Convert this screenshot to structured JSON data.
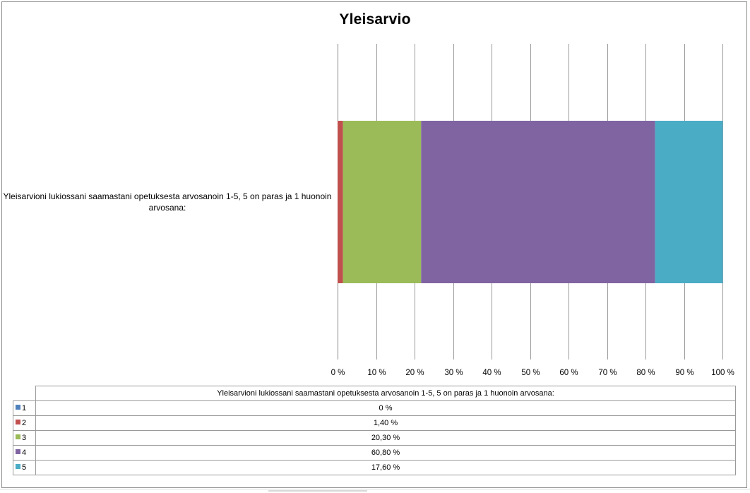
{
  "chart_data": {
    "type": "bar",
    "orientation": "horizontal",
    "stacked": "percent",
    "title": "Yleisarvio",
    "categories": [
      "Yleisarvioni lukiossani saamastani opetuksesta arvosanoin 1-5, 5 on paras ja 1 huonoin arvosana:"
    ],
    "series": [
      {
        "name": "1",
        "values": [
          0
        ],
        "color": "#4F81BD"
      },
      {
        "name": "2",
        "values": [
          1.4
        ],
        "color": "#C0504D"
      },
      {
        "name": "3",
        "values": [
          20.3
        ],
        "color": "#9BBB59"
      },
      {
        "name": "4",
        "values": [
          60.8
        ],
        "color": "#8064A2"
      },
      {
        "name": "5",
        "values": [
          17.6
        ],
        "color": "#4BACC6"
      }
    ],
    "xlim": [
      0,
      100
    ],
    "x_ticks": [
      "0 %",
      "10 %",
      "20 %",
      "30 %",
      "40 %",
      "50 %",
      "60 %",
      "70 %",
      "80 %",
      "90 %",
      "100 %"
    ],
    "grid": "vertical",
    "legend": "data-table-below",
    "xlabel": "",
    "ylabel": ""
  },
  "data_table": {
    "column_header": "Yleisarvioni lukiossani saamastani opetuksesta arvosanoin 1-5, 5 on paras ja 1 huonoin arvosana:",
    "rows": [
      {
        "key": "1",
        "value": "0 %",
        "color": "#4F81BD"
      },
      {
        "key": "2",
        "value": "1,40 %",
        "color": "#C0504D"
      },
      {
        "key": "3",
        "value": "20,30 %",
        "color": "#9BBB59"
      },
      {
        "key": "4",
        "value": "60,80 %",
        "color": "#8064A2"
      },
      {
        "key": "5",
        "value": "17,60 %",
        "color": "#4BACC6"
      }
    ]
  }
}
